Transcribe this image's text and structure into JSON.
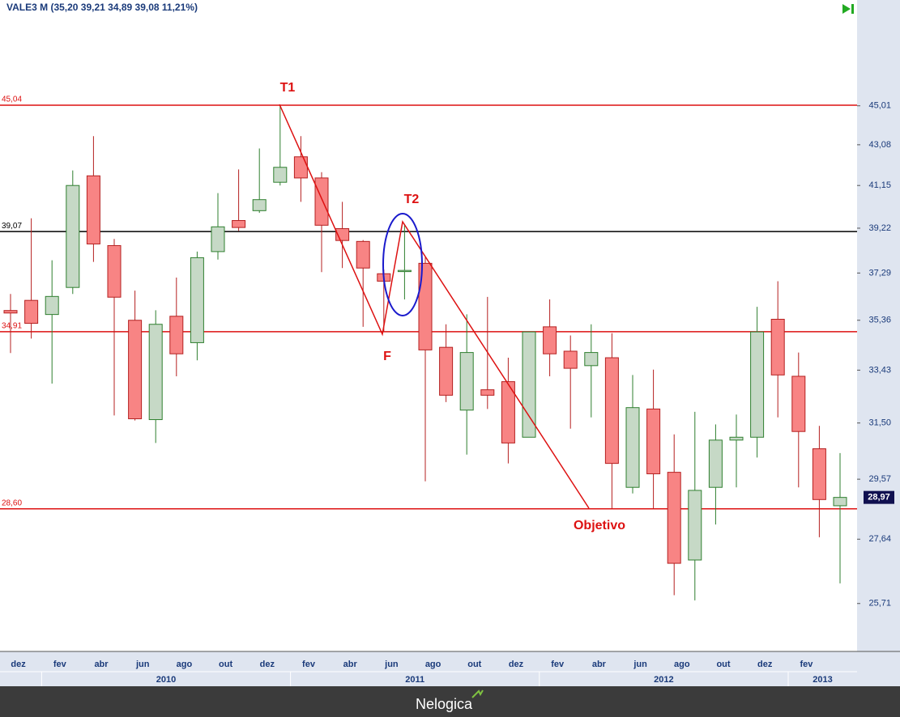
{
  "chart_data": {
    "type": "candlestick",
    "title": "VALE3 M (35,20  39,21  34,89  39,08  11,21%)",
    "categories": [
      null,
      "dez",
      null,
      "fev",
      null,
      "abr",
      null,
      "jun",
      null,
      "ago",
      null,
      "out",
      null,
      "dez",
      null,
      "fev",
      null,
      "abr",
      null,
      "jun",
      null,
      "ago",
      null,
      "out",
      null,
      "dez",
      null,
      "fev",
      null,
      "abr",
      null,
      "jun",
      null,
      "ago",
      null,
      "out",
      null,
      "dez",
      null,
      "fev",
      null
    ],
    "years": [
      "2010",
      "2011",
      "2012",
      "2013"
    ],
    "open": [
      35.75,
      36.16,
      35.59,
      36.69,
      41.6,
      38.46,
      35.36,
      31.62,
      35.52,
      34.48,
      38.2,
      39.56,
      40.0,
      41.3,
      42.5,
      41.5,
      39.2,
      38.64,
      37.26,
      37.35,
      37.7,
      34.3,
      31.96,
      32.7,
      33.0,
      31.0,
      35.1,
      34.15,
      33.6,
      33.9,
      29.3,
      32.0,
      29.8,
      27.0,
      29.3,
      30.9,
      31.0,
      35.4,
      33.2,
      30.6,
      28.7
    ],
    "high": [
      36.42,
      39.66,
      37.83,
      41.85,
      43.5,
      38.75,
      36.56,
      35.76,
      37.1,
      38.2,
      40.8,
      41.9,
      42.9,
      45.04,
      43.5,
      41.77,
      40.4,
      38.7,
      37.44,
      39.4,
      38.0,
      35.2,
      35.6,
      36.3,
      33.9,
      34.9,
      36.2,
      34.76,
      35.2,
      34.85,
      33.25,
      33.45,
      31.1,
      31.9,
      31.45,
      31.8,
      35.9,
      36.95,
      34.1,
      31.4,
      30.45
    ],
    "low": [
      34.08,
      34.64,
      32.93,
      36.42,
      37.76,
      31.77,
      31.59,
      30.8,
      33.2,
      33.8,
      37.86,
      39.1,
      39.9,
      41.15,
      40.4,
      37.33,
      37.5,
      35.1,
      34.9,
      36.2,
      29.5,
      32.25,
      30.4,
      32.0,
      30.1,
      31.0,
      33.2,
      31.3,
      31.7,
      28.6,
      29.1,
      28.6,
      25.95,
      25.8,
      28.1,
      29.3,
      30.3,
      31.7,
      29.3,
      27.7,
      26.3
    ],
    "close": [
      35.65,
      35.24,
      36.32,
      41.15,
      38.53,
      36.29,
      31.65,
      35.2,
      34.05,
      37.94,
      39.28,
      39.25,
      40.5,
      42.0,
      41.5,
      39.35,
      38.68,
      37.5,
      36.95,
      37.4,
      34.2,
      32.5,
      34.1,
      32.5,
      30.8,
      34.9,
      34.05,
      33.5,
      34.1,
      30.1,
      32.05,
      29.75,
      26.9,
      29.2,
      30.9,
      31.0,
      34.9,
      33.25,
      31.2,
      28.9,
      28.97
    ],
    "last_label": {
      "value": 28.97,
      "label": "28,97"
    },
    "up_color": "#c6d9c6",
    "up_edge": "#2f7f2f",
    "down_color": "#f88484",
    "down_edge": "#b52020",
    "log_scale": true,
    "ylim": [
      24.36,
      50.7
    ],
    "yticks": [
      {
        "value": 45.01,
        "label": "45,01"
      },
      {
        "value": 43.08,
        "label": "43,08"
      },
      {
        "value": 41.15,
        "label": "41,15"
      },
      {
        "value": 39.22,
        "label": "39,22"
      },
      {
        "value": 37.29,
        "label": "37,29"
      },
      {
        "value": 35.36,
        "label": "35,36"
      },
      {
        "value": 33.43,
        "label": "33,43"
      },
      {
        "value": 31.5,
        "label": "31,50"
      },
      {
        "value": 29.57,
        "label": "29,57"
      },
      {
        "value": 27.64,
        "label": "27,64"
      },
      {
        "value": 25.71,
        "label": "25,71"
      }
    ],
    "levels": [
      {
        "value": 45.04,
        "label": "45,04",
        "color": "#dd1111"
      },
      {
        "value": 39.07,
        "label": "39,07",
        "color": "#000000"
      },
      {
        "value": 34.91,
        "label": "34,91",
        "color": "#dd1111"
      },
      {
        "value": 28.6,
        "label": "28,60",
        "color": "#dd1111"
      }
    ],
    "annotations": [
      "T1",
      "T2",
      "F",
      "Objetivo"
    ]
  },
  "brand": "Nelogica"
}
